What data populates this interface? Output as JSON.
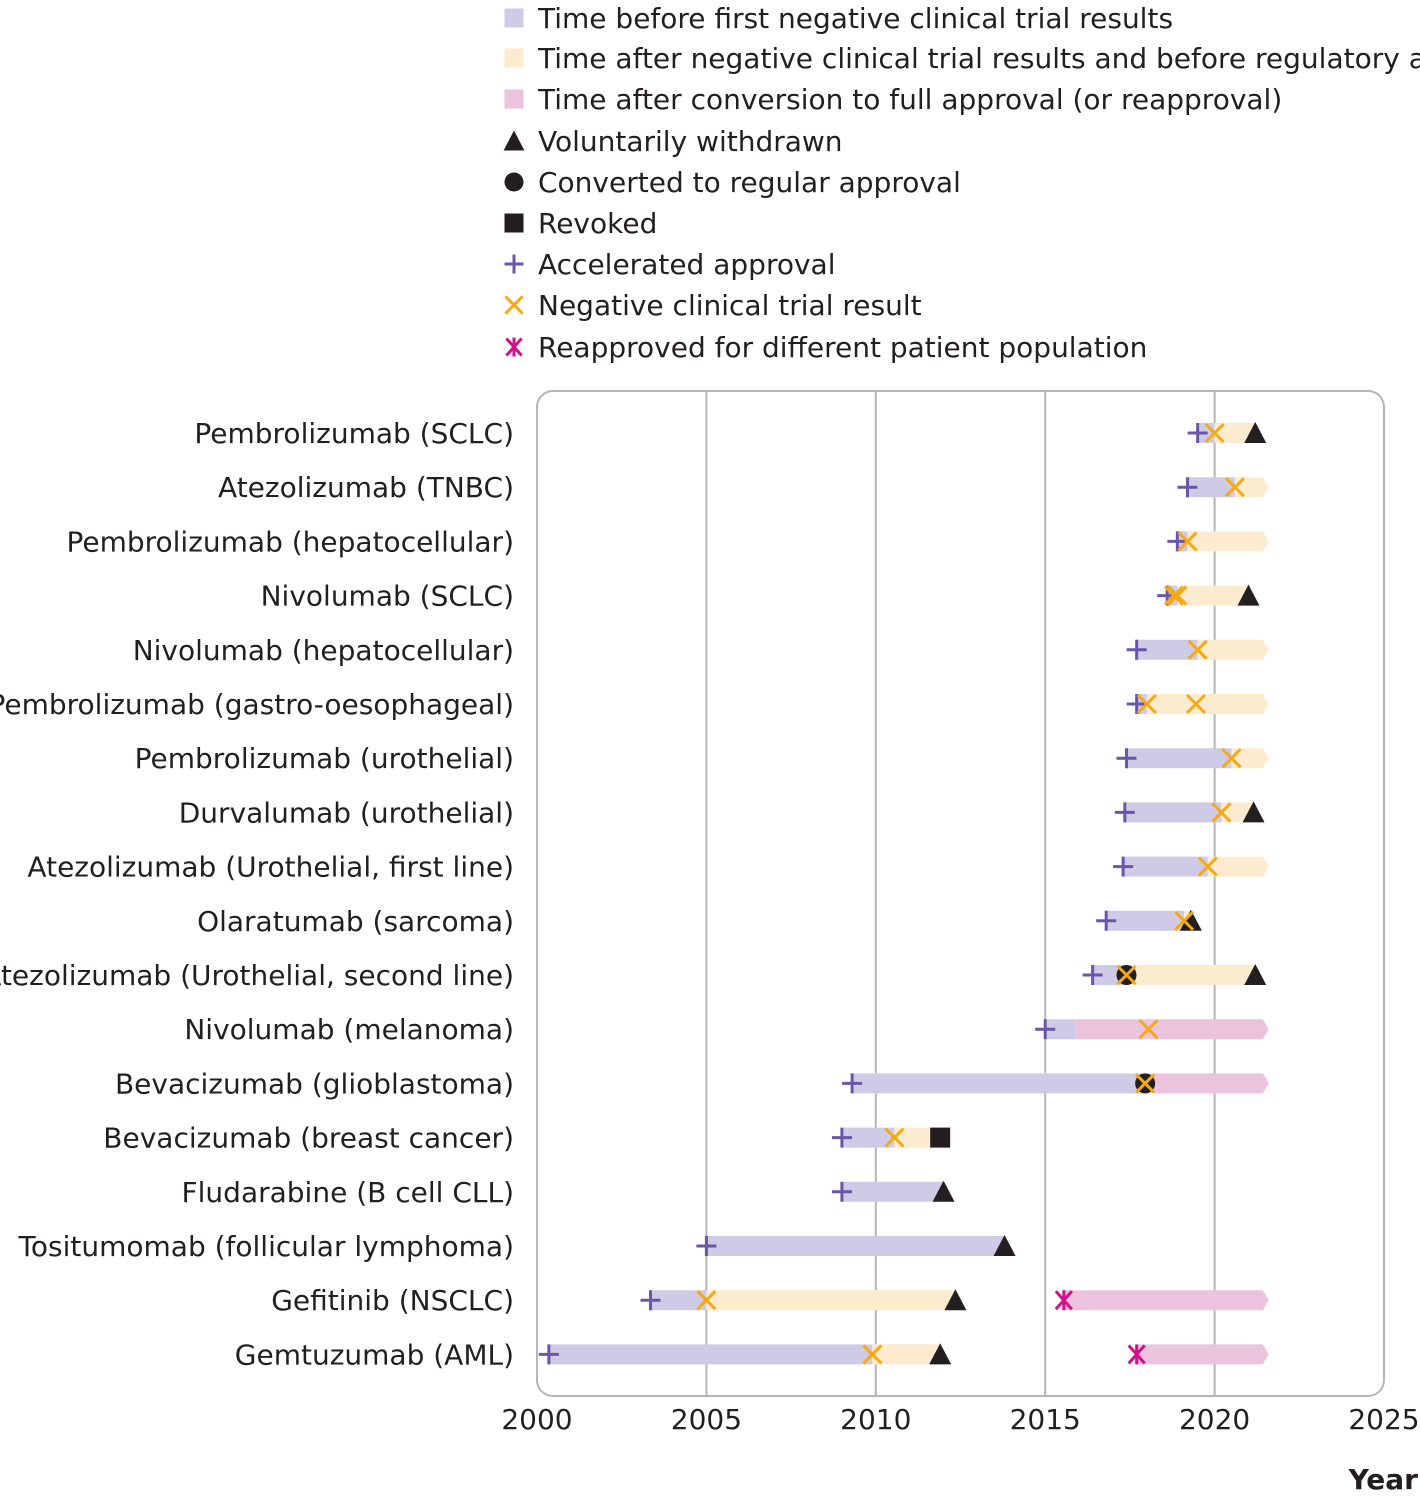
{
  "colors": {
    "before_negative": "#cfcbe6",
    "after_negative": "#fdebcf",
    "after_conversion": "#ecc3dd",
    "accelerated": "#6a55a8",
    "negative": "#f5a914",
    "reapproved": "#d0118a",
    "black": "#231f20",
    "grid": "#b5b5b5"
  },
  "legend": [
    {
      "key": "before_negative",
      "icon": "purple-square",
      "label": "Time before first negative clinical trial results"
    },
    {
      "key": "after_negative",
      "icon": "yellow-square",
      "label": "Time after negative clinical trial results and before regulatory action"
    },
    {
      "key": "after_conversion",
      "icon": "pink-square",
      "label": "Time after conversion to full approval (or reapproval)"
    },
    {
      "key": "withdrawn",
      "icon": "triangle",
      "label": "Voluntarily withdrawn"
    },
    {
      "key": "converted",
      "icon": "circle",
      "label": "Converted to regular approval"
    },
    {
      "key": "revoked",
      "icon": "square",
      "label": "Revoked"
    },
    {
      "key": "accelerated",
      "icon": "plus",
      "label": "Accelerated approval"
    },
    {
      "key": "negative",
      "icon": "cross",
      "label": "Negative clinical trial result"
    },
    {
      "key": "reapproved",
      "icon": "asterisk",
      "label": "Reapproved for different patient population"
    }
  ],
  "chart_data": {
    "type": "timeline",
    "xlabel": "Year",
    "xlim": [
      2000,
      2025
    ],
    "xticks": [
      2000,
      2005,
      2010,
      2015,
      2020,
      2025
    ],
    "grid": "vertical",
    "legend_position": "top",
    "rows": [
      {
        "label": "Pembrolizumab (SCLC)",
        "segments": [
          {
            "type": "before_negative",
            "from": 2019.5,
            "to": 2020.0
          },
          {
            "type": "after_negative",
            "from": 2020.0,
            "to": 2021.2
          }
        ],
        "markers": [
          {
            "type": "accelerated",
            "x": 2019.5
          },
          {
            "type": "negative",
            "x": 2020.0
          },
          {
            "type": "withdrawn",
            "x": 2021.2
          }
        ]
      },
      {
        "label": "Atezolizumab (TNBC)",
        "segments": [
          {
            "type": "before_negative",
            "from": 2019.2,
            "to": 2020.6
          },
          {
            "type": "after_negative",
            "from": 2020.6,
            "to": 2021.6,
            "ongoing": true
          }
        ],
        "markers": [
          {
            "type": "accelerated",
            "x": 2019.2
          },
          {
            "type": "negative",
            "x": 2020.6
          }
        ]
      },
      {
        "label": "Pembrolizumab (hepatocellular)",
        "segments": [
          {
            "type": "before_negative",
            "from": 2018.9,
            "to": 2019.2
          },
          {
            "type": "after_negative",
            "from": 2019.2,
            "to": 2021.6,
            "ongoing": true
          }
        ],
        "markers": [
          {
            "type": "accelerated",
            "x": 2018.9
          },
          {
            "type": "negative",
            "x": 2019.2
          }
        ]
      },
      {
        "label": "Nivolumab (SCLC)",
        "segments": [
          {
            "type": "before_negative",
            "from": 2018.6,
            "to": 2018.9
          },
          {
            "type": "after_negative",
            "from": 2018.9,
            "to": 2021.0
          }
        ],
        "markers": [
          {
            "type": "accelerated",
            "x": 2018.6
          },
          {
            "type": "negative",
            "x": 2018.8
          },
          {
            "type": "negative",
            "x": 2018.9
          },
          {
            "type": "withdrawn",
            "x": 2021.0
          }
        ]
      },
      {
        "label": "Nivolumab (hepatocellular)",
        "segments": [
          {
            "type": "before_negative",
            "from": 2017.7,
            "to": 2019.5
          },
          {
            "type": "after_negative",
            "from": 2019.5,
            "to": 2021.6,
            "ongoing": true
          }
        ],
        "markers": [
          {
            "type": "accelerated",
            "x": 2017.7
          },
          {
            "type": "negative",
            "x": 2019.5
          }
        ]
      },
      {
        "label": "Pembrolizumab (gastro-oesophageal)",
        "segments": [
          {
            "type": "before_negative",
            "from": 2017.7,
            "to": 2018.0
          },
          {
            "type": "after_negative",
            "from": 2018.0,
            "to": 2021.6,
            "ongoing": true
          }
        ],
        "markers": [
          {
            "type": "accelerated",
            "x": 2017.7
          },
          {
            "type": "negative",
            "x": 2018.0
          },
          {
            "type": "negative",
            "x": 2019.45
          }
        ]
      },
      {
        "label": "Pembrolizumab (urothelial)",
        "segments": [
          {
            "type": "before_negative",
            "from": 2017.4,
            "to": 2020.5
          },
          {
            "type": "after_negative",
            "from": 2020.5,
            "to": 2021.6,
            "ongoing": true
          }
        ],
        "markers": [
          {
            "type": "accelerated",
            "x": 2017.4
          },
          {
            "type": "negative",
            "x": 2020.5
          }
        ]
      },
      {
        "label": "Durvalumab (urothelial)",
        "segments": [
          {
            "type": "before_negative",
            "from": 2017.35,
            "to": 2020.2
          },
          {
            "type": "after_negative",
            "from": 2020.2,
            "to": 2021.15
          }
        ],
        "markers": [
          {
            "type": "accelerated",
            "x": 2017.35
          },
          {
            "type": "negative",
            "x": 2020.2
          },
          {
            "type": "withdrawn",
            "x": 2021.15
          }
        ]
      },
      {
        "label": "Atezolizumab (Urothelial, first line)",
        "segments": [
          {
            "type": "before_negative",
            "from": 2017.3,
            "to": 2019.8
          },
          {
            "type": "after_negative",
            "from": 2019.8,
            "to": 2021.6,
            "ongoing": true
          }
        ],
        "markers": [
          {
            "type": "accelerated",
            "x": 2017.3
          },
          {
            "type": "negative",
            "x": 2019.8
          }
        ]
      },
      {
        "label": "Olaratumab (sarcoma)",
        "segments": [
          {
            "type": "before_negative",
            "from": 2016.8,
            "to": 2019.1
          },
          {
            "type": "after_negative",
            "from": 2019.1,
            "to": 2019.3
          }
        ],
        "markers": [
          {
            "type": "accelerated",
            "x": 2016.8
          },
          {
            "type": "withdrawn",
            "x": 2019.3
          },
          {
            "type": "negative",
            "x": 2019.1
          }
        ]
      },
      {
        "label": "Atezolizumab (Urothelial, second line)",
        "segments": [
          {
            "type": "before_negative",
            "from": 2016.4,
            "to": 2017.4
          },
          {
            "type": "after_negative",
            "from": 2017.4,
            "to": 2021.2
          }
        ],
        "markers": [
          {
            "type": "accelerated",
            "x": 2016.4
          },
          {
            "type": "converted",
            "x": 2017.4
          },
          {
            "type": "negative",
            "x": 2017.4
          },
          {
            "type": "withdrawn",
            "x": 2021.2
          }
        ]
      },
      {
        "label": "Nivolumab (melanoma)",
        "segments": [
          {
            "type": "before_negative",
            "from": 2015.0,
            "to": 2015.9
          },
          {
            "type": "after_conversion",
            "from": 2015.9,
            "to": 2021.6,
            "ongoing": true
          }
        ],
        "markers": [
          {
            "type": "accelerated",
            "x": 2015.0
          },
          {
            "type": "negative",
            "x": 2018.05
          }
        ]
      },
      {
        "label": "Bevacizumab (glioblastoma)",
        "segments": [
          {
            "type": "before_negative",
            "from": 2009.3,
            "to": 2017.95
          },
          {
            "type": "after_conversion",
            "from": 2017.95,
            "to": 2021.6,
            "ongoing": true
          }
        ],
        "markers": [
          {
            "type": "accelerated",
            "x": 2009.3
          },
          {
            "type": "converted",
            "x": 2017.95
          },
          {
            "type": "negative",
            "x": 2017.95
          }
        ]
      },
      {
        "label": "Bevacizumab (breast cancer)",
        "segments": [
          {
            "type": "before_negative",
            "from": 2009.0,
            "to": 2010.55
          },
          {
            "type": "after_negative",
            "from": 2010.55,
            "to": 2011.9
          }
        ],
        "markers": [
          {
            "type": "accelerated",
            "x": 2009.0
          },
          {
            "type": "negative",
            "x": 2010.55
          },
          {
            "type": "revoked",
            "x": 2011.9
          }
        ]
      },
      {
        "label": "Fludarabine (B cell CLL)",
        "segments": [
          {
            "type": "before_negative",
            "from": 2009.0,
            "to": 2012.0
          }
        ],
        "markers": [
          {
            "type": "accelerated",
            "x": 2009.0
          },
          {
            "type": "withdrawn",
            "x": 2012.0
          }
        ]
      },
      {
        "label": "Tositumomab (follicular lymphoma)",
        "segments": [
          {
            "type": "before_negative",
            "from": 2005.0,
            "to": 2013.8
          }
        ],
        "markers": [
          {
            "type": "accelerated",
            "x": 2005.0
          },
          {
            "type": "withdrawn",
            "x": 2013.8
          }
        ]
      },
      {
        "label": "Gefitinib (NSCLC)",
        "segments": [
          {
            "type": "before_negative",
            "from": 2003.35,
            "to": 2005.0
          },
          {
            "type": "after_negative",
            "from": 2005.0,
            "to": 2012.35
          },
          {
            "type": "after_conversion",
            "from": 2015.55,
            "to": 2021.6,
            "ongoing": true
          }
        ],
        "markers": [
          {
            "type": "accelerated",
            "x": 2003.35
          },
          {
            "type": "negative",
            "x": 2005.0
          },
          {
            "type": "withdrawn",
            "x": 2012.35
          },
          {
            "type": "reapproved",
            "x": 2015.55
          }
        ]
      },
      {
        "label": "Gemtuzumab (AML)",
        "segments": [
          {
            "type": "before_negative",
            "from": 2000.35,
            "to": 2009.9
          },
          {
            "type": "after_negative",
            "from": 2009.9,
            "to": 2011.9
          },
          {
            "type": "after_conversion",
            "from": 2017.7,
            "to": 2021.6,
            "ongoing": true
          }
        ],
        "markers": [
          {
            "type": "accelerated",
            "x": 2000.35
          },
          {
            "type": "negative",
            "x": 2009.9
          },
          {
            "type": "withdrawn",
            "x": 2011.9
          },
          {
            "type": "reapproved",
            "x": 2017.7
          }
        ]
      }
    ]
  }
}
